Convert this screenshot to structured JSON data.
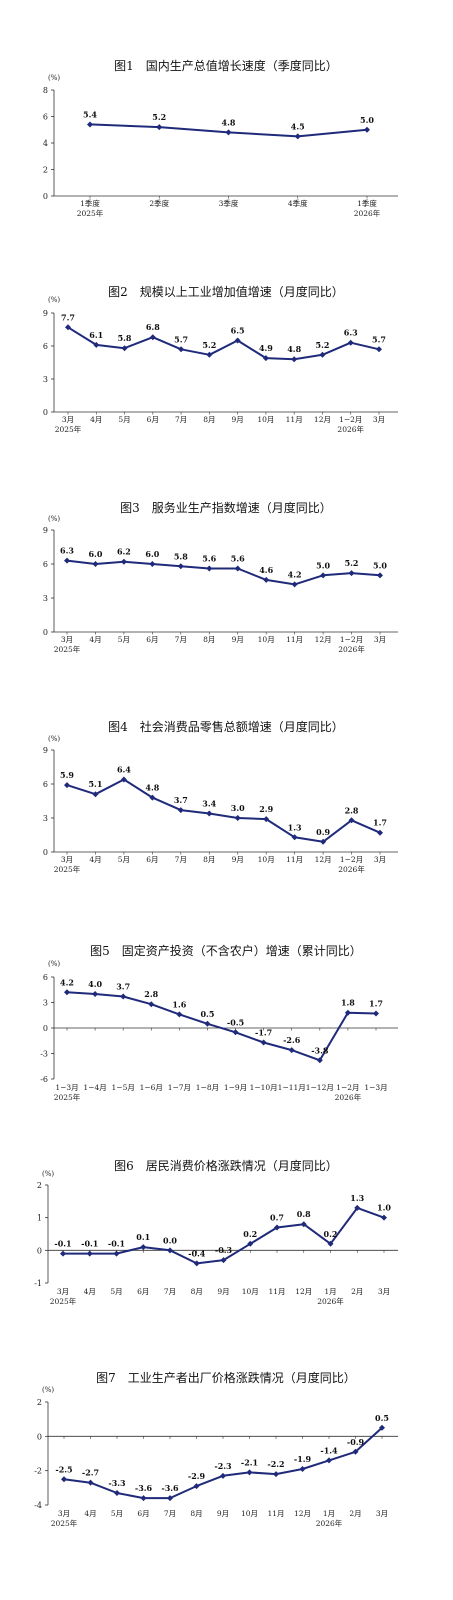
{
  "series_color": "#1f2a7a",
  "chart_data": [
    {
      "type": "line",
      "title": "图1　国内生产总值增长速度（季度同比）",
      "unit": "(%)",
      "ylim": [
        0,
        8
      ],
      "yticks": [
        "0",
        "2",
        "4",
        "6",
        "8"
      ],
      "categories": [
        "1季度",
        "2季度",
        "3季度",
        "4季度",
        "1季度"
      ],
      "sublabels": [
        "2025年",
        "",
        "",
        "",
        "2026年"
      ],
      "values": [
        5.4,
        5.2,
        4.8,
        4.5,
        5.0
      ],
      "labels": [
        "5.4",
        "5.2",
        "4.8",
        "4.5",
        "5.0"
      ],
      "grid": false
    },
    {
      "type": "line",
      "title": "图2　规模以上工业增加值增速（月度同比）",
      "unit": "(%)",
      "ylim": [
        0,
        9
      ],
      "yticks": [
        "0",
        "3",
        "6",
        "9"
      ],
      "categories": [
        "3月",
        "4月",
        "5月",
        "6月",
        "7月",
        "8月",
        "9月",
        "10月",
        "11月",
        "12月",
        "1−2月",
        "3月"
      ],
      "sublabels": [
        "2025年",
        "",
        "",
        "",
        "",
        "",
        "",
        "",
        "",
        "",
        "2026年",
        ""
      ],
      "values": [
        7.7,
        6.1,
        5.8,
        6.8,
        5.7,
        5.2,
        6.5,
        4.9,
        4.8,
        5.2,
        6.3,
        5.7
      ],
      "labels": [
        "7.7",
        "6.1",
        "5.8",
        "6.8",
        "5.7",
        "5.2",
        "6.5",
        "4.9",
        "4.8",
        "5.2",
        "6.3",
        "5.7"
      ],
      "grid": false
    },
    {
      "type": "line",
      "title": "图3　服务业生产指数增速（月度同比）",
      "unit": "(%)",
      "ylim": [
        0,
        9
      ],
      "yticks": [
        "0",
        "3",
        "6",
        "9"
      ],
      "categories": [
        "3月",
        "4月",
        "5月",
        "6月",
        "7月",
        "8月",
        "9月",
        "10月",
        "11月",
        "12月",
        "1−2月",
        "3月"
      ],
      "sublabels": [
        "2025年",
        "",
        "",
        "",
        "",
        "",
        "",
        "",
        "",
        "",
        "2026年",
        ""
      ],
      "values": [
        6.3,
        6.0,
        6.2,
        6.0,
        5.8,
        5.6,
        5.6,
        4.6,
        4.2,
        5.0,
        5.2,
        5.0
      ],
      "labels": [
        "6.3",
        "6.0",
        "6.2",
        "6.0",
        "5.8",
        "5.6",
        "5.6",
        "4.6",
        "4.2",
        "5.0",
        "5.2",
        "5.0"
      ],
      "grid": false
    },
    {
      "type": "line",
      "title": "图4　社会消费品零售总额增速（月度同比）",
      "unit": "(%)",
      "ylim": [
        0,
        9
      ],
      "yticks": [
        "0",
        "3",
        "6",
        "9"
      ],
      "categories": [
        "3月",
        "4月",
        "5月",
        "6月",
        "7月",
        "8月",
        "9月",
        "10月",
        "11月",
        "12月",
        "1−2月",
        "3月"
      ],
      "sublabels": [
        "2025年",
        "",
        "",
        "",
        "",
        "",
        "",
        "",
        "",
        "",
        "2026年",
        ""
      ],
      "values": [
        5.9,
        5.1,
        6.4,
        4.8,
        3.7,
        3.4,
        3.0,
        2.9,
        1.3,
        0.9,
        2.8,
        1.7
      ],
      "labels": [
        "5.9",
        "5.1",
        "6.4",
        "4.8",
        "3.7",
        "3.4",
        "3.0",
        "2.9",
        "1.3",
        "0.9",
        "2.8",
        "1.7"
      ],
      "grid": false
    },
    {
      "type": "line",
      "title": "图5　固定资产投资（不含农户）增速（累计同比）",
      "unit": "(%)",
      "ylim": [
        -6,
        6
      ],
      "yticks": [
        "-6",
        "-3",
        "0",
        "3",
        "6"
      ],
      "categories": [
        "1−3月",
        "1−4月",
        "1−5月",
        "1−6月",
        "1−7月",
        "1−8月",
        "1−9月",
        "1−10月",
        "1−11月",
        "1−12月",
        "1−2月",
        "1−3月"
      ],
      "sublabels": [
        "2025年",
        "",
        "",
        "",
        "",
        "",
        "",
        "",
        "",
        "",
        "2026年",
        ""
      ],
      "values": [
        4.2,
        4.0,
        3.7,
        2.8,
        1.6,
        0.5,
        -0.5,
        -1.7,
        -2.6,
        -3.8,
        1.8,
        1.7
      ],
      "labels": [
        "4.2",
        "4.0",
        "3.7",
        "2.8",
        "1.6",
        "0.5",
        "-0.5",
        "-1.7",
        "-2.6",
        "-3.8",
        "1.8",
        "1.7"
      ],
      "grid": false
    },
    {
      "type": "line",
      "title": "图6　居民消费价格涨跌情况（月度同比）",
      "unit": "(%)",
      "ylim": [
        -1,
        2
      ],
      "yticks": [
        "-1",
        "0",
        "1",
        "2"
      ],
      "categories": [
        "3月",
        "4月",
        "5月",
        "6月",
        "7月",
        "8月",
        "9月",
        "10月",
        "11月",
        "12月",
        "1月",
        "2月",
        "3月"
      ],
      "sublabels": [
        "2025年",
        "",
        "",
        "",
        "",
        "",
        "",
        "",
        "",
        "",
        "2026年",
        "",
        ""
      ],
      "values": [
        -0.1,
        -0.1,
        -0.1,
        0.1,
        0.0,
        -0.4,
        -0.3,
        0.2,
        0.7,
        0.8,
        0.2,
        1.3,
        1.0
      ],
      "labels": [
        "-0.1",
        "-0.1",
        "-0.1",
        "0.1",
        "0.0",
        "-0.4",
        "-0.3",
        "0.2",
        "0.7",
        "0.8",
        "0.2",
        "1.3",
        "1.0"
      ],
      "grid": false
    },
    {
      "type": "line",
      "title": "图7　工业生产者出厂价格涨跌情况（月度同比）",
      "unit": "(%)",
      "ylim": [
        -4,
        2
      ],
      "yticks": [
        "-4",
        "-2",
        "0",
        "2"
      ],
      "categories": [
        "3月",
        "4月",
        "5月",
        "6月",
        "7月",
        "8月",
        "9月",
        "10月",
        "11月",
        "12月",
        "1月",
        "2月",
        "3月"
      ],
      "sublabels": [
        "2025年",
        "",
        "",
        "",
        "",
        "",
        "",
        "",
        "",
        "",
        "2026年",
        "",
        ""
      ],
      "values": [
        -2.5,
        -2.7,
        -3.3,
        -3.6,
        -3.6,
        -2.9,
        -2.3,
        -2.1,
        -2.2,
        -1.9,
        -1.4,
        -0.9,
        0.5
      ],
      "labels": [
        "-2.5",
        "-2.7",
        "-3.3",
        "-3.6",
        "-3.6",
        "-2.9",
        "-2.3",
        "-2.1",
        "-2.2",
        "-1.9",
        "-1.4",
        "-0.9",
        "0.5"
      ],
      "grid": false
    }
  ]
}
